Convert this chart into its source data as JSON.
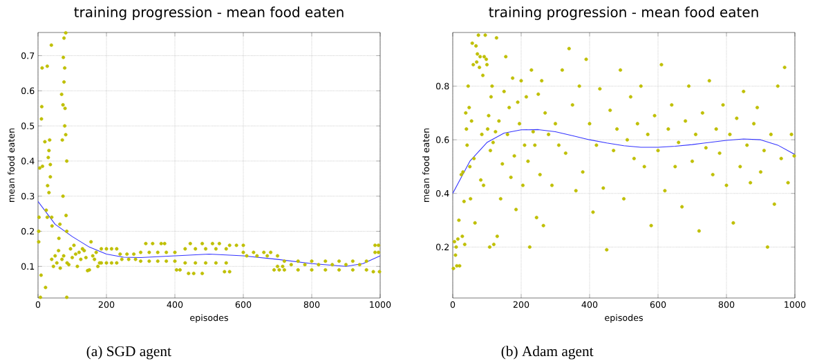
{
  "chart_data": [
    {
      "type": "scatter",
      "title": "training progression - mean food eaten",
      "xlabel": "episodes",
      "ylabel": "mean food eaten",
      "annotations": [
        "(a) SGD agent"
      ],
      "xlim": [
        0,
        1000
      ],
      "ylim": [
        0.01,
        0.766
      ],
      "xticks": [
        0,
        200,
        400,
        600,
        800,
        1000
      ],
      "yticks": [
        0.1,
        0.2,
        0.3,
        0.4,
        0.5,
        0.6,
        0.7
      ],
      "grid": true,
      "marker": "circle",
      "series": [
        {
          "color": "#bfbf00",
          "x": [
            2,
            2,
            3,
            5,
            7,
            9,
            10,
            11,
            12,
            13,
            20,
            22,
            24,
            27,
            27,
            28,
            30,
            32,
            32,
            34,
            36,
            36,
            39,
            40,
            41,
            61,
            64,
            69,
            71,
            73,
            73,
            74,
            76,
            76,
            78,
            78,
            79,
            81,
            81,
            82,
            84,
            84,
            84,
            40,
            45,
            50,
            55,
            60,
            65,
            70,
            75,
            85,
            90,
            95,
            100,
            105,
            110,
            115,
            120,
            125,
            130,
            135,
            140,
            145,
            150,
            155,
            160,
            165,
            170,
            175,
            180,
            185,
            200,
            215,
            230,
            185,
            200,
            215,
            230,
            240,
            260,
            280,
            245,
            265,
            285,
            300,
            325,
            350,
            375,
            400,
            300,
            325,
            350,
            375,
            400,
            315,
            335,
            360,
            370,
            405,
            415,
            430,
            460,
            490,
            520,
            550,
            430,
            460,
            490,
            520,
            550,
            445,
            480,
            510,
            530,
            440,
            455,
            480,
            545,
            560,
            560,
            580,
            600,
            600,
            630,
            660,
            680,
            610,
            640,
            670,
            700,
            690,
            705,
            700,
            715,
            720,
            760,
            800,
            840,
            880,
            920,
            960,
            720,
            760,
            800,
            840,
            880,
            920,
            960,
            740,
            780,
            820,
            860,
            900,
            940,
            985,
            995,
            985,
            995,
            980,
            998
          ],
          "values": [
            0.2,
            0.17,
            0.24,
            0.38,
            0.012,
            0.075,
            0.52,
            0.555,
            0.665,
            0.385,
            0.455,
            0.04,
            0.26,
            0.67,
            0.24,
            0.33,
            0.41,
            0.43,
            0.31,
            0.46,
            0.39,
            0.355,
            0.73,
            0.24,
            0.215,
            0.18,
            0.22,
            0.59,
            0.46,
            0.56,
            0.3,
            0.695,
            0.75,
            0.625,
            0.665,
            0.5,
            0.55,
            0.475,
            0.765,
            0.245,
            0.4,
            0.2,
            0.012,
            0.12,
            0.1,
            0.13,
            0.11,
            0.145,
            0.095,
            0.12,
            0.13,
            0.11,
            0.105,
            0.15,
            0.125,
            0.16,
            0.135,
            0.1,
            0.14,
            0.12,
            0.15,
            0.145,
            0.125,
            0.088,
            0.09,
            0.17,
            0.13,
            0.12,
            0.14,
            0.1,
            0.11,
            0.15,
            0.15,
            0.15,
            0.15,
            0.11,
            0.11,
            0.11,
            0.11,
            0.135,
            0.135,
            0.135,
            0.12,
            0.12,
            0.12,
            0.14,
            0.14,
            0.14,
            0.14,
            0.14,
            0.115,
            0.115,
            0.115,
            0.115,
            0.115,
            0.165,
            0.165,
            0.165,
            0.165,
            0.09,
            0.09,
            0.15,
            0.15,
            0.15,
            0.15,
            0.15,
            0.11,
            0.11,
            0.11,
            0.11,
            0.11,
            0.165,
            0.165,
            0.165,
            0.165,
            0.08,
            0.08,
            0.08,
            0.085,
            0.085,
            0.16,
            0.16,
            0.16,
            0.14,
            0.14,
            0.14,
            0.14,
            0.13,
            0.13,
            0.13,
            0.13,
            0.09,
            0.09,
            0.1,
            0.1,
            0.115,
            0.115,
            0.115,
            0.115,
            0.115,
            0.115,
            0.115,
            0.09,
            0.09,
            0.09,
            0.09,
            0.09,
            0.09,
            0.09,
            0.105,
            0.105,
            0.105,
            0.105,
            0.105,
            0.105,
            0.16,
            0.16,
            0.14,
            0.14,
            0.085,
            0.085
          ]
        },
        {
          "type": "line",
          "marker": "none",
          "color": "#3333ff",
          "x": [
            0,
            50,
            100,
            150,
            200,
            250,
            300,
            400,
            500,
            600,
            700,
            800,
            900,
            950,
            1000
          ],
          "values": [
            0.285,
            0.22,
            0.185,
            0.155,
            0.135,
            0.126,
            0.125,
            0.13,
            0.135,
            0.13,
            0.12,
            0.108,
            0.1,
            0.108,
            0.13
          ]
        }
      ]
    },
    {
      "type": "scatter",
      "title": "training progression - mean food eaten",
      "xlabel": "episodes",
      "ylabel": "mean food eaten",
      "annotations": [
        "(b) Adam agent"
      ],
      "xlim": [
        0,
        1000
      ],
      "ylim": [
        0.01,
        1.0
      ],
      "xticks": [
        0,
        200,
        400,
        600,
        800,
        1000
      ],
      "yticks": [
        0.2,
        0.4,
        0.6,
        0.8
      ],
      "grid": true,
      "marker": "circle",
      "series": [
        {
          "color": "#bfbf00",
          "x": [
            2,
            5,
            8,
            10,
            12,
            15,
            18,
            20,
            25,
            28,
            30,
            33,
            35,
            38,
            40,
            42,
            45,
            48,
            50,
            52,
            55,
            57,
            60,
            62,
            65,
            68,
            70,
            72,
            75,
            78,
            80,
            82,
            85,
            88,
            90,
            92,
            95,
            98,
            100,
            102,
            105,
            108,
            110,
            112,
            115,
            118,
            120,
            125,
            128,
            130,
            135,
            140,
            145,
            150,
            155,
            160,
            165,
            170,
            175,
            180,
            185,
            190,
            195,
            200,
            205,
            210,
            215,
            220,
            225,
            230,
            235,
            240,
            245,
            250,
            255,
            260,
            265,
            270,
            280,
            290,
            300,
            310,
            320,
            330,
            340,
            350,
            360,
            370,
            380,
            390,
            400,
            410,
            420,
            430,
            440,
            450,
            460,
            470,
            480,
            490,
            500,
            510,
            520,
            530,
            540,
            550,
            560,
            570,
            580,
            590,
            600,
            610,
            620,
            630,
            640,
            650,
            660,
            670,
            680,
            690,
            700,
            710,
            720,
            730,
            740,
            750,
            760,
            770,
            780,
            790,
            800,
            810,
            820,
            830,
            840,
            850,
            860,
            870,
            880,
            890,
            900,
            910,
            920,
            930,
            940,
            950,
            960,
            970,
            980,
            990,
            998
          ],
          "values": [
            0.12,
            0.22,
            0.17,
            0.2,
            0.13,
            0.23,
            0.3,
            0.13,
            0.47,
            0.24,
            0.48,
            0.37,
            0.21,
            0.7,
            0.64,
            0.58,
            0.8,
            0.72,
            0.5,
            0.38,
            0.67,
            0.96,
            0.88,
            0.53,
            0.29,
            0.95,
            0.89,
            0.92,
            0.99,
            0.87,
            0.91,
            0.45,
            0.62,
            0.84,
            0.43,
            0.91,
            0.99,
            0.9,
            0.88,
            0.64,
            0.69,
            0.2,
            0.56,
            0.76,
            0.8,
            0.59,
            0.21,
            0.63,
            0.98,
            0.24,
            0.67,
            0.38,
            0.51,
            0.78,
            0.91,
            0.62,
            0.72,
            0.46,
            0.83,
            0.54,
            0.34,
            0.74,
            0.66,
            0.82,
            0.43,
            0.58,
            0.76,
            0.52,
            0.2,
            0.86,
            0.63,
            0.58,
            0.31,
            0.77,
            0.47,
            0.82,
            0.28,
            0.7,
            0.62,
            0.43,
            0.66,
            0.58,
            0.86,
            0.55,
            0.94,
            0.73,
            0.41,
            0.8,
            0.48,
            0.9,
            0.66,
            0.33,
            0.58,
            0.79,
            0.42,
            0.19,
            0.71,
            0.56,
            0.64,
            0.86,
            0.38,
            0.6,
            0.76,
            0.53,
            0.66,
            0.8,
            0.5,
            0.62,
            0.28,
            0.69,
            0.56,
            0.88,
            0.41,
            0.64,
            0.73,
            0.5,
            0.59,
            0.35,
            0.67,
            0.8,
            0.52,
            0.62,
            0.26,
            0.7,
            0.57,
            0.82,
            0.47,
            0.64,
            0.55,
            0.73,
            0.43,
            0.62,
            0.29,
            0.68,
            0.5,
            0.78,
            0.58,
            0.44,
            0.66,
            0.72,
            0.48,
            0.56,
            0.2,
            0.62,
            0.36,
            0.8,
            0.53,
            0.87,
            0.44,
            0.62,
            0.54
          ]
        },
        {
          "type": "line",
          "marker": "none",
          "color": "#3333ff",
          "x": [
            0,
            50,
            100,
            150,
            200,
            250,
            300,
            350,
            400,
            450,
            500,
            550,
            600,
            650,
            700,
            750,
            800,
            850,
            900,
            950,
            1000
          ],
          "values": [
            0.4,
            0.52,
            0.59,
            0.625,
            0.637,
            0.638,
            0.63,
            0.615,
            0.6,
            0.588,
            0.578,
            0.572,
            0.572,
            0.576,
            0.582,
            0.59,
            0.598,
            0.603,
            0.6,
            0.58,
            0.545
          ]
        }
      ]
    }
  ]
}
